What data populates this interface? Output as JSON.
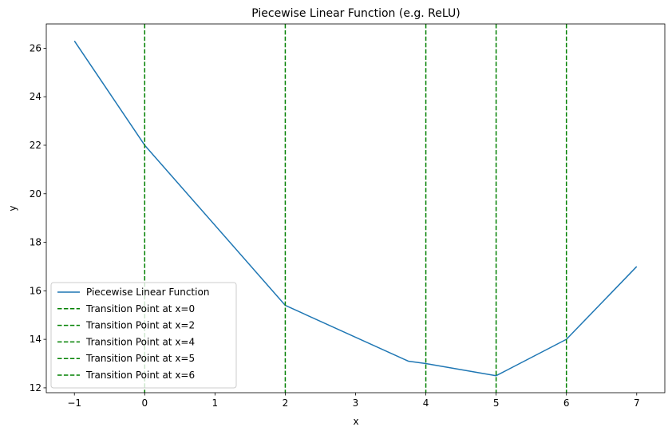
{
  "chart_data": {
    "type": "line",
    "title": "Piecewise Linear Function (e.g. ReLU)",
    "xlabel": "x",
    "ylabel": "y",
    "xlim": [
      -1.4,
      7.4
    ],
    "ylim": [
      11.8,
      27
    ],
    "xticks": [
      -1,
      0,
      1,
      2,
      3,
      4,
      5,
      6,
      7
    ],
    "xtick_labels": [
      "−1",
      "0",
      "1",
      "2",
      "3",
      "4",
      "5",
      "6",
      "7"
    ],
    "yticks": [
      12,
      14,
      16,
      18,
      20,
      22,
      24,
      26
    ],
    "ytick_labels": [
      "12",
      "14",
      "16",
      "18",
      "20",
      "22",
      "24",
      "26"
    ],
    "grid": false,
    "legend_position": "lower-left",
    "series": [
      {
        "name": "Piecewise Linear Function",
        "color": "#1f77b4",
        "x": [
          -1,
          0,
          2,
          3.75,
          4,
          5,
          6,
          7
        ],
        "y": [
          26.3,
          22,
          15.4,
          13.1,
          13,
          12.5,
          14,
          17
        ]
      }
    ],
    "vlines": [
      {
        "x": 0,
        "name": "Transition Point at x=0",
        "color": "#008000",
        "style": "dashed"
      },
      {
        "x": 2,
        "name": "Transition Point at x=2",
        "color": "#008000",
        "style": "dashed"
      },
      {
        "x": 4,
        "name": "Transition Point at x=4",
        "color": "#008000",
        "style": "dashed"
      },
      {
        "x": 5,
        "name": "Transition Point at x=5",
        "color": "#008000",
        "style": "dashed"
      },
      {
        "x": 6,
        "name": "Transition Point at x=6",
        "color": "#008000",
        "style": "dashed"
      }
    ]
  }
}
